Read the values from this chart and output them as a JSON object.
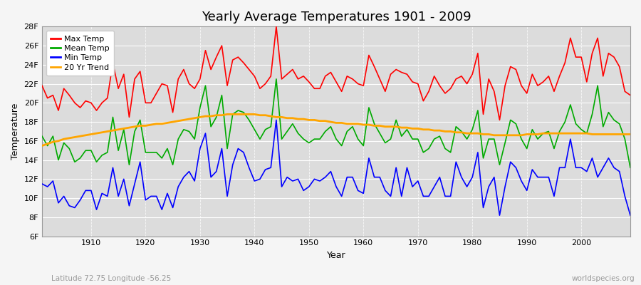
{
  "title": "Yearly Average Temperatures 1901 - 2009",
  "xlabel": "Year",
  "ylabel": "Temperature",
  "subtitle_left": "Latitude 72.75 Longitude -56.25",
  "subtitle_right": "worldspecies.org",
  "ylim": [
    6,
    28
  ],
  "ytick_labels": [
    "6F",
    "8F",
    "10F",
    "12F",
    "14F",
    "16F",
    "18F",
    "20F",
    "22F",
    "24F",
    "26F",
    "28F"
  ],
  "ytick_vals": [
    6,
    8,
    10,
    12,
    14,
    16,
    18,
    20,
    22,
    24,
    26,
    28
  ],
  "xlim": [
    1901,
    2009
  ],
  "xtick_vals": [
    1910,
    1920,
    1930,
    1940,
    1950,
    1960,
    1970,
    1980,
    1990,
    2000
  ],
  "bg_color": "#dcdcdc",
  "fig_color": "#f5f5f5",
  "colors": {
    "max": "#ff0000",
    "mean": "#00aa00",
    "min": "#0000ff",
    "trend": "#ffa500"
  },
  "years": [
    1901,
    1902,
    1903,
    1904,
    1905,
    1906,
    1907,
    1908,
    1909,
    1910,
    1911,
    1912,
    1913,
    1914,
    1915,
    1916,
    1917,
    1918,
    1919,
    1920,
    1921,
    1922,
    1923,
    1924,
    1925,
    1926,
    1927,
    1928,
    1929,
    1930,
    1931,
    1932,
    1933,
    1934,
    1935,
    1936,
    1937,
    1938,
    1939,
    1940,
    1941,
    1942,
    1943,
    1944,
    1945,
    1946,
    1947,
    1948,
    1949,
    1950,
    1951,
    1952,
    1953,
    1954,
    1955,
    1956,
    1957,
    1958,
    1959,
    1960,
    1961,
    1962,
    1963,
    1964,
    1965,
    1966,
    1967,
    1968,
    1969,
    1970,
    1971,
    1972,
    1973,
    1974,
    1975,
    1976,
    1977,
    1978,
    1979,
    1980,
    1981,
    1982,
    1983,
    1984,
    1985,
    1986,
    1987,
    1988,
    1989,
    1990,
    1991,
    1992,
    1993,
    1994,
    1995,
    1996,
    1997,
    1998,
    1999,
    2000,
    2001,
    2002,
    2003,
    2004,
    2005,
    2006,
    2007,
    2008,
    2009
  ],
  "max_temp": [
    21.8,
    20.5,
    20.8,
    19.2,
    21.5,
    20.8,
    20.0,
    19.5,
    20.2,
    20.0,
    19.2,
    20.0,
    20.5,
    24.2,
    21.5,
    23.0,
    18.5,
    22.5,
    23.3,
    20.0,
    20.0,
    21.0,
    22.0,
    21.8,
    19.0,
    22.5,
    23.5,
    22.0,
    21.5,
    22.5,
    25.5,
    23.5,
    24.8,
    26.0,
    21.8,
    24.5,
    24.8,
    24.2,
    23.5,
    22.8,
    21.5,
    22.0,
    22.8,
    28.0,
    22.5,
    23.0,
    23.5,
    22.5,
    22.8,
    22.2,
    21.5,
    21.5,
    22.8,
    23.2,
    22.2,
    21.2,
    22.8,
    22.5,
    22.0,
    21.8,
    25.0,
    23.8,
    22.5,
    21.2,
    23.0,
    23.5,
    23.2,
    23.0,
    22.2,
    22.0,
    20.2,
    21.2,
    22.8,
    21.8,
    21.0,
    21.5,
    22.5,
    22.8,
    22.0,
    23.0,
    25.2,
    18.8,
    22.5,
    21.2,
    18.2,
    21.8,
    23.8,
    23.5,
    21.8,
    21.0,
    23.0,
    21.8,
    22.2,
    22.8,
    21.2,
    22.8,
    24.2,
    26.8,
    24.8,
    24.8,
    22.2,
    25.2,
    26.8,
    22.8,
    25.2,
    24.8,
    23.8,
    21.2,
    20.8
  ],
  "mean_temp": [
    16.5,
    15.5,
    16.5,
    14.0,
    15.8,
    15.2,
    13.8,
    14.2,
    15.0,
    15.0,
    13.8,
    14.5,
    14.8,
    18.5,
    15.0,
    17.2,
    13.5,
    17.0,
    18.2,
    14.8,
    14.8,
    14.8,
    14.2,
    15.2,
    13.5,
    16.2,
    17.2,
    17.0,
    16.2,
    19.5,
    21.8,
    17.5,
    18.5,
    20.8,
    15.2,
    18.8,
    19.2,
    19.0,
    18.2,
    17.2,
    16.2,
    17.2,
    17.5,
    22.5,
    16.2,
    17.0,
    17.8,
    16.8,
    16.2,
    15.8,
    16.2,
    16.2,
    17.0,
    17.5,
    16.2,
    15.5,
    17.0,
    17.5,
    16.2,
    15.5,
    19.5,
    17.8,
    16.8,
    15.8,
    16.2,
    18.2,
    16.5,
    17.2,
    16.2,
    16.2,
    14.8,
    15.2,
    16.2,
    16.5,
    15.2,
    14.8,
    17.5,
    17.0,
    16.2,
    17.2,
    19.2,
    14.2,
    16.2,
    16.2,
    13.5,
    15.8,
    18.2,
    17.8,
    16.2,
    15.2,
    17.2,
    16.2,
    16.8,
    17.0,
    15.2,
    17.0,
    18.0,
    19.8,
    17.8,
    17.2,
    16.8,
    18.8,
    21.8,
    17.5,
    19.0,
    18.2,
    17.8,
    16.2,
    13.2
  ],
  "min_temp": [
    11.5,
    11.2,
    11.8,
    9.5,
    10.2,
    9.2,
    9.0,
    9.8,
    10.8,
    10.8,
    8.8,
    10.5,
    10.2,
    13.2,
    10.2,
    12.0,
    9.2,
    11.5,
    13.8,
    9.8,
    10.2,
    10.2,
    8.8,
    10.5,
    9.0,
    11.2,
    12.2,
    12.8,
    11.8,
    15.2,
    16.8,
    12.2,
    12.8,
    15.2,
    10.2,
    13.5,
    15.2,
    14.8,
    13.2,
    11.8,
    12.0,
    13.0,
    13.2,
    18.2,
    11.2,
    12.2,
    11.8,
    12.0,
    10.8,
    11.2,
    12.0,
    11.8,
    12.2,
    12.8,
    11.2,
    10.2,
    12.2,
    12.2,
    10.8,
    10.5,
    14.2,
    12.2,
    12.2,
    10.8,
    10.2,
    13.2,
    10.2,
    13.2,
    11.2,
    11.8,
    10.2,
    10.2,
    11.2,
    12.2,
    10.2,
    10.2,
    13.8,
    12.2,
    11.2,
    12.2,
    14.8,
    9.0,
    11.2,
    12.2,
    8.2,
    11.2,
    13.8,
    13.2,
    11.8,
    10.8,
    13.0,
    12.2,
    12.2,
    12.2,
    10.2,
    13.2,
    13.2,
    16.2,
    13.2,
    13.2,
    12.8,
    14.2,
    12.2,
    13.2,
    14.2,
    13.2,
    12.8,
    10.2,
    8.2
  ],
  "trend": [
    15.5,
    15.7,
    15.9,
    16.0,
    16.2,
    16.3,
    16.4,
    16.5,
    16.6,
    16.7,
    16.8,
    16.9,
    17.0,
    17.1,
    17.2,
    17.3,
    17.4,
    17.5,
    17.6,
    17.6,
    17.7,
    17.8,
    17.8,
    17.9,
    18.0,
    18.1,
    18.2,
    18.3,
    18.4,
    18.5,
    18.6,
    18.6,
    18.7,
    18.7,
    18.8,
    18.8,
    18.8,
    18.8,
    18.8,
    18.8,
    18.7,
    18.7,
    18.6,
    18.5,
    18.5,
    18.4,
    18.4,
    18.3,
    18.3,
    18.2,
    18.2,
    18.1,
    18.1,
    18.0,
    17.9,
    17.9,
    17.8,
    17.8,
    17.8,
    17.7,
    17.7,
    17.6,
    17.6,
    17.5,
    17.5,
    17.5,
    17.4,
    17.4,
    17.3,
    17.3,
    17.2,
    17.2,
    17.1,
    17.1,
    17.0,
    17.0,
    16.9,
    16.9,
    16.8,
    16.8,
    16.8,
    16.7,
    16.7,
    16.6,
    16.6,
    16.6,
    16.6,
    16.6,
    16.6,
    16.7,
    16.7,
    16.7,
    16.8,
    16.8,
    16.8,
    16.8,
    16.8,
    16.8,
    16.8,
    16.8,
    16.8,
    16.7,
    16.7,
    16.7,
    16.7,
    16.7,
    16.7,
    16.7,
    16.7
  ]
}
